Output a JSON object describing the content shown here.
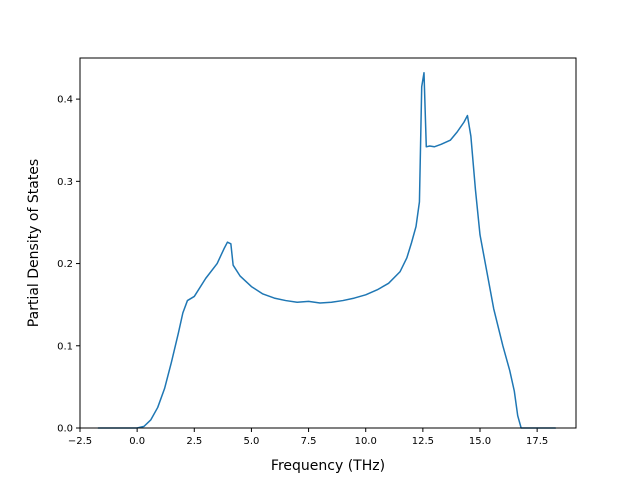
{
  "chart_data": {
    "type": "line",
    "title": "",
    "xlabel": "Frequency (THz)",
    "ylabel": "Partial Density of States",
    "xlim": [
      -2.5,
      19.2
    ],
    "ylim": [
      0.0,
      0.45
    ],
    "xticks": [
      -2.5,
      0.0,
      2.5,
      5.0,
      7.5,
      10.0,
      12.5,
      15.0,
      17.5
    ],
    "xtick_labels": [
      "−2.5",
      "0.0",
      "2.5",
      "5.0",
      "7.5",
      "10.0",
      "12.5",
      "15.0",
      "17.5"
    ],
    "yticks": [
      0.0,
      0.1,
      0.2,
      0.3,
      0.4
    ],
    "ytick_labels": [
      "0.0",
      "0.1",
      "0.2",
      "0.3",
      "0.4"
    ],
    "grid": false,
    "legend": null,
    "series": [
      {
        "color": "#1f77b4",
        "x": [
          -1.7,
          -0.5,
          0.0,
          0.3,
          0.6,
          0.9,
          1.2,
          1.5,
          1.8,
          2.0,
          2.2,
          2.5,
          3.0,
          3.5,
          3.8,
          3.95,
          4.1,
          4.2,
          4.5,
          5.0,
          5.5,
          6.0,
          6.5,
          7.0,
          7.5,
          8.0,
          8.5,
          9.0,
          9.5,
          10.0,
          10.5,
          11.0,
          11.5,
          11.8,
          12.0,
          12.2,
          12.35,
          12.45,
          12.55,
          12.65,
          12.8,
          13.0,
          13.3,
          13.7,
          14.0,
          14.3,
          14.45,
          14.6,
          14.8,
          15.0,
          15.3,
          15.6,
          16.0,
          16.3,
          16.5,
          16.65,
          16.8,
          17.5,
          18.3
        ],
        "y": [
          0.0,
          0.0,
          0.0,
          0.002,
          0.01,
          0.025,
          0.048,
          0.08,
          0.115,
          0.14,
          0.155,
          0.16,
          0.182,
          0.2,
          0.218,
          0.226,
          0.224,
          0.198,
          0.185,
          0.172,
          0.163,
          0.158,
          0.155,
          0.153,
          0.154,
          0.152,
          0.153,
          0.155,
          0.158,
          0.162,
          0.168,
          0.176,
          0.19,
          0.207,
          0.225,
          0.245,
          0.275,
          0.415,
          0.432,
          0.342,
          0.343,
          0.342,
          0.345,
          0.35,
          0.36,
          0.372,
          0.38,
          0.355,
          0.29,
          0.235,
          0.19,
          0.145,
          0.1,
          0.07,
          0.045,
          0.015,
          0.0,
          0.0,
          0.0
        ]
      }
    ]
  }
}
